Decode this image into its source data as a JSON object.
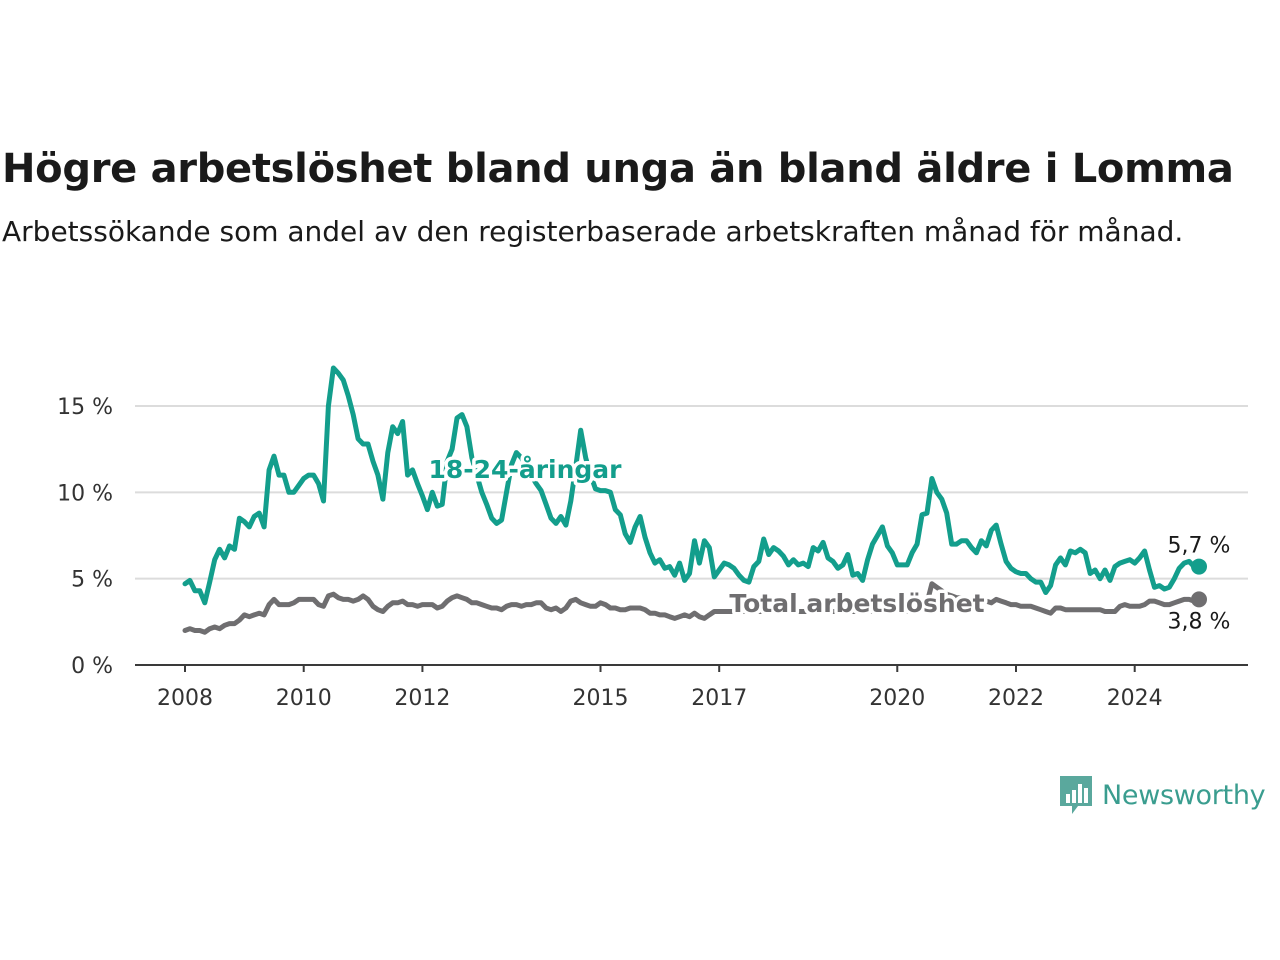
{
  "header": {
    "title": "Högre arbetslöshet bland unga än bland äldre i Lomma",
    "subtitle": "Arbetssökande som andel av den registerbaserade arbetskraften månad för månad."
  },
  "logo": {
    "text": "Newsworthy",
    "icon": "newsworthy-chart-bubble-icon"
  },
  "colors": {
    "youth": "#139e8c",
    "total": "#6f6e70",
    "grid": "#dcdcdc",
    "axis": "#3a3a3a"
  },
  "chart_data": {
    "type": "line",
    "x_ticks": [
      "2008",
      "2010",
      "2012",
      "2015",
      "2017",
      "2020",
      "2022",
      "2024"
    ],
    "y_ticks": [
      "0 %",
      "5 %",
      "10 %",
      "15 %"
    ],
    "ylim": [
      0,
      17.5
    ],
    "grid": "horizontal",
    "x_start": "2008-01",
    "x_step": "month",
    "series": [
      {
        "name": "18-24-åringar",
        "end_label": "5,7 %",
        "values": [
          4.7,
          4.9,
          4.3,
          4.3,
          3.6,
          4.8,
          6.1,
          6.7,
          6.2,
          6.9,
          6.7,
          8.5,
          8.3,
          8.0,
          8.6,
          8.8,
          8.0,
          11.3,
          12.1,
          11.0,
          11.0,
          10.0,
          10.0,
          10.4,
          10.8,
          11.0,
          11.0,
          10.5,
          9.5,
          15.0,
          17.2,
          16.9,
          16.5,
          15.6,
          14.5,
          13.1,
          12.8,
          12.8,
          11.8,
          11.0,
          9.6,
          12.3,
          13.8,
          13.4,
          14.1,
          11.0,
          11.3,
          10.5,
          9.8,
          9.0,
          10.0,
          9.2,
          9.3,
          11.8,
          12.5,
          14.3,
          14.5,
          13.8,
          12.0,
          11.0,
          10.0,
          9.3,
          8.5,
          8.2,
          8.4,
          10.0,
          11.6,
          12.3,
          12.0,
          11.5,
          11.0,
          10.5,
          10.1,
          9.3,
          8.5,
          8.2,
          8.6,
          8.1,
          9.5,
          11.5,
          13.6,
          12.0,
          11.0,
          10.2,
          10.1,
          10.1,
          10.0,
          9.0,
          8.7,
          7.6,
          7.1,
          8.0,
          8.6,
          7.4,
          6.5,
          5.9,
          6.1,
          5.6,
          5.7,
          5.2,
          5.9,
          4.9,
          5.3,
          7.2,
          5.9,
          7.2,
          6.8,
          5.1,
          5.5,
          5.9,
          5.8,
          5.6,
          5.2,
          4.9,
          4.8,
          5.7,
          6.0,
          7.3,
          6.4,
          6.8,
          6.6,
          6.3,
          5.8,
          6.1,
          5.8,
          5.9,
          5.7,
          6.8,
          6.6,
          7.1,
          6.2,
          6.0,
          5.6,
          5.8,
          6.4,
          5.2,
          5.3,
          4.9,
          6.1,
          7.0,
          7.5,
          8.0,
          6.9,
          6.5,
          5.8,
          5.8,
          5.8,
          6.5,
          7.0,
          8.7,
          8.8,
          10.8,
          10.0,
          9.6,
          8.8,
          7.0,
          7.0,
          7.2,
          7.2,
          6.8,
          6.5,
          7.2,
          6.9,
          7.8,
          8.1,
          7.0,
          6.0,
          5.6,
          5.4,
          5.3,
          5.3,
          5.0,
          4.8,
          4.8,
          4.2,
          4.6,
          5.8,
          6.2,
          5.8,
          6.6,
          6.5,
          6.7,
          6.5,
          5.3,
          5.5,
          5.0,
          5.5,
          4.9,
          5.7,
          5.9,
          6.0,
          6.1,
          5.9,
          6.2,
          6.6,
          5.5,
          4.5,
          4.6,
          4.4,
          4.5,
          5.0,
          5.6,
          5.9,
          6.0,
          5.7,
          5.7
        ]
      },
      {
        "name": "Total arbetslöshet",
        "end_label": "3,8 %",
        "values": [
          2.0,
          2.1,
          2.0,
          2.0,
          1.9,
          2.1,
          2.2,
          2.1,
          2.3,
          2.4,
          2.4,
          2.6,
          2.9,
          2.8,
          2.9,
          3.0,
          2.9,
          3.5,
          3.8,
          3.5,
          3.5,
          3.5,
          3.6,
          3.8,
          3.8,
          3.8,
          3.8,
          3.5,
          3.4,
          4.0,
          4.1,
          3.9,
          3.8,
          3.8,
          3.7,
          3.8,
          4.0,
          3.8,
          3.4,
          3.2,
          3.1,
          3.4,
          3.6,
          3.6,
          3.7,
          3.5,
          3.5,
          3.4,
          3.5,
          3.5,
          3.5,
          3.3,
          3.4,
          3.7,
          3.9,
          4.0,
          3.9,
          3.8,
          3.6,
          3.6,
          3.5,
          3.4,
          3.3,
          3.3,
          3.2,
          3.4,
          3.5,
          3.5,
          3.4,
          3.5,
          3.5,
          3.6,
          3.6,
          3.3,
          3.2,
          3.3,
          3.1,
          3.3,
          3.7,
          3.8,
          3.6,
          3.5,
          3.4,
          3.4,
          3.6,
          3.5,
          3.3,
          3.3,
          3.2,
          3.2,
          3.3,
          3.3,
          3.3,
          3.2,
          3.0,
          3.0,
          2.9,
          2.9,
          2.8,
          2.7,
          2.8,
          2.9,
          2.8,
          3.0,
          2.8,
          2.7,
          2.9,
          3.1,
          3.1,
          3.1,
          3.1,
          3.1,
          3.1,
          3.1,
          3.1,
          3.1,
          3.1,
          3.1,
          3.1,
          3.2,
          3.2,
          3.2,
          3.2,
          3.1,
          3.1,
          3.1,
          3.1,
          3.2,
          3.2,
          3.2,
          3.1,
          3.1,
          3.1,
          3.1,
          3.2,
          3.1,
          3.1,
          3.1,
          3.1,
          3.1,
          3.2,
          3.2,
          3.2,
          3.1,
          3.1,
          3.1,
          3.1,
          3.1,
          3.2,
          3.5,
          3.6,
          4.7,
          4.5,
          4.3,
          4.1,
          4.0,
          3.9,
          3.9,
          3.8,
          3.8,
          3.7,
          3.6,
          3.7,
          3.6,
          3.8,
          3.7,
          3.6,
          3.5,
          3.5,
          3.4,
          3.4,
          3.4,
          3.3,
          3.2,
          3.1,
          3.0,
          3.3,
          3.3,
          3.2,
          3.2,
          3.2,
          3.2,
          3.2,
          3.2,
          3.2,
          3.2,
          3.1,
          3.1,
          3.1,
          3.4,
          3.5,
          3.4,
          3.4,
          3.4,
          3.5,
          3.7,
          3.7,
          3.6,
          3.5,
          3.5,
          3.6,
          3.7,
          3.8,
          3.8,
          3.7,
          3.8
        ]
      }
    ]
  }
}
